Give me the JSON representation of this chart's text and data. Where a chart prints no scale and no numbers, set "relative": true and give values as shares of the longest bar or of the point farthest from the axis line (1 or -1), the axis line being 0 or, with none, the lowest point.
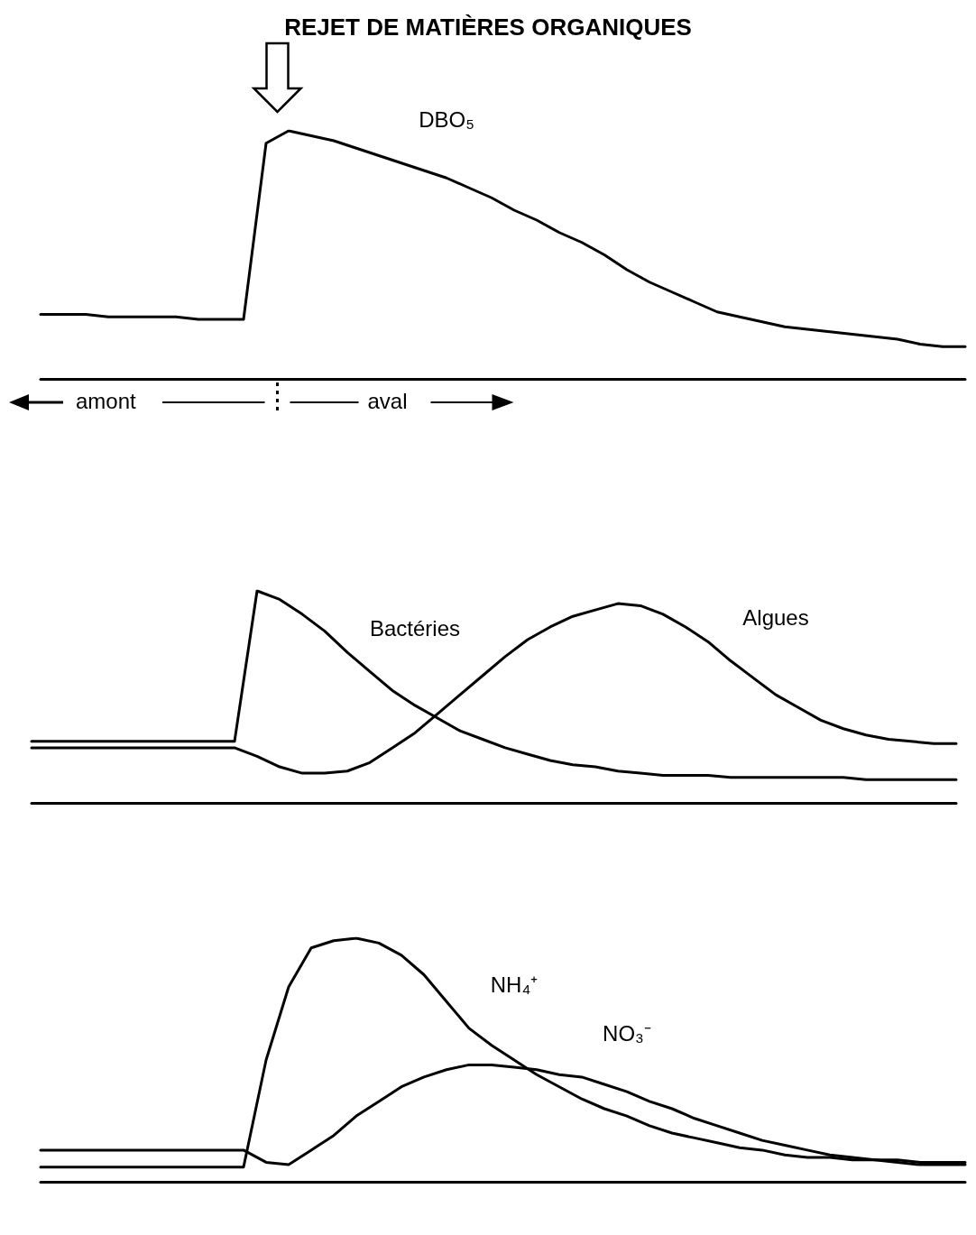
{
  "chart_data": [
    {
      "type": "line",
      "title": "REJET DE MATIÈRES ORGANIQUES",
      "annotations": [
        "amont",
        "aval"
      ],
      "relative": true,
      "marker": "none",
      "line_style": "solid",
      "legend": false,
      "categories": [
        null,
        null,
        null,
        null,
        null,
        null,
        null,
        null,
        null,
        null,
        null,
        null,
        null,
        null,
        null,
        null,
        null,
        null,
        null,
        null,
        null,
        null,
        null,
        null,
        null,
        null,
        null,
        null,
        null,
        null,
        null,
        null,
        null,
        null,
        null,
        null,
        null,
        null,
        null,
        null,
        null,
        null
      ],
      "series": [
        {
          "name": "DBO₅",
          "color": "#000000",
          "values": [
            0.26,
            0.26,
            0.26,
            0.25,
            0.25,
            0.25,
            0.25,
            0.24,
            0.24,
            0.24,
            0.95,
            1.0,
            0.98,
            0.96,
            0.93,
            0.9,
            0.87,
            0.84,
            0.81,
            0.77,
            0.73,
            0.68,
            0.64,
            0.59,
            0.55,
            0.5,
            0.44,
            0.39,
            0.35,
            0.31,
            0.27,
            0.25,
            0.23,
            0.21,
            0.2,
            0.19,
            0.18,
            0.17,
            0.16,
            0.14,
            0.13,
            0.13
          ]
        }
      ]
    },
    {
      "type": "line",
      "relative": true,
      "marker": "none",
      "line_style": "solid",
      "legend": false,
      "categories": [
        null,
        null,
        null,
        null,
        null,
        null,
        null,
        null,
        null,
        null,
        null,
        null,
        null,
        null,
        null,
        null,
        null,
        null,
        null,
        null,
        null,
        null,
        null,
        null,
        null,
        null,
        null,
        null,
        null,
        null,
        null,
        null,
        null,
        null,
        null,
        null,
        null,
        null,
        null,
        null,
        null,
        null
      ],
      "series": [
        {
          "name": "Bactéries",
          "color": "#000000",
          "values": [
            0.29,
            0.29,
            0.29,
            0.29,
            0.29,
            0.29,
            0.29,
            0.29,
            0.29,
            0.29,
            1.0,
            0.96,
            0.89,
            0.81,
            0.71,
            0.62,
            0.53,
            0.46,
            0.4,
            0.34,
            0.3,
            0.26,
            0.23,
            0.2,
            0.18,
            0.17,
            0.15,
            0.14,
            0.13,
            0.13,
            0.13,
            0.12,
            0.12,
            0.12,
            0.12,
            0.12,
            0.12,
            0.11,
            0.11,
            0.11,
            0.11,
            0.11
          ]
        },
        {
          "name": "Algues",
          "color": "#000000",
          "values": [
            0.26,
            0.26,
            0.26,
            0.26,
            0.26,
            0.26,
            0.26,
            0.26,
            0.26,
            0.26,
            0.22,
            0.17,
            0.14,
            0.14,
            0.15,
            0.19,
            0.26,
            0.33,
            0.42,
            0.51,
            0.6,
            0.69,
            0.77,
            0.83,
            0.88,
            0.91,
            0.94,
            0.93,
            0.89,
            0.83,
            0.76,
            0.67,
            0.59,
            0.51,
            0.45,
            0.39,
            0.35,
            0.32,
            0.3,
            0.29,
            0.28,
            0.28
          ]
        }
      ]
    },
    {
      "type": "line",
      "relative": true,
      "marker": "none",
      "line_style": "solid",
      "legend": false,
      "categories": [
        null,
        null,
        null,
        null,
        null,
        null,
        null,
        null,
        null,
        null,
        null,
        null,
        null,
        null,
        null,
        null,
        null,
        null,
        null,
        null,
        null,
        null,
        null,
        null,
        null,
        null,
        null,
        null,
        null,
        null,
        null,
        null,
        null,
        null,
        null,
        null,
        null,
        null,
        null,
        null,
        null,
        null
      ],
      "series": [
        {
          "name": "NH₄⁺",
          "color": "#000000",
          "values": [
            0.06,
            0.06,
            0.06,
            0.06,
            0.06,
            0.06,
            0.06,
            0.06,
            0.06,
            0.06,
            0.5,
            0.8,
            0.96,
            0.99,
            1.0,
            0.98,
            0.93,
            0.85,
            0.74,
            0.63,
            0.56,
            0.5,
            0.44,
            0.39,
            0.34,
            0.3,
            0.27,
            0.23,
            0.2,
            0.18,
            0.16,
            0.14,
            0.13,
            0.11,
            0.1,
            0.1,
            0.09,
            0.09,
            0.09,
            0.08,
            0.08,
            0.08
          ]
        },
        {
          "name": "NO₃⁻",
          "color": "#000000",
          "values": [
            0.13,
            0.13,
            0.13,
            0.13,
            0.13,
            0.13,
            0.13,
            0.13,
            0.13,
            0.13,
            0.08,
            0.07,
            0.13,
            0.19,
            0.27,
            0.33,
            0.39,
            0.43,
            0.46,
            0.48,
            0.48,
            0.47,
            0.46,
            0.44,
            0.43,
            0.4,
            0.37,
            0.33,
            0.3,
            0.26,
            0.23,
            0.2,
            0.17,
            0.15,
            0.13,
            0.11,
            0.1,
            0.09,
            0.08,
            0.07,
            0.07,
            0.07
          ]
        }
      ]
    }
  ]
}
